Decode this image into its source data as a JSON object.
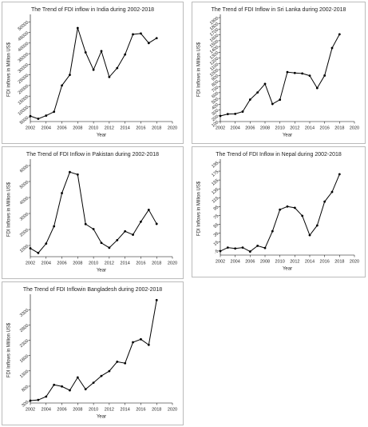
{
  "chart_data": [
    {
      "type": "line",
      "title": "The Trend of FDI inflow in India during 2002-2018",
      "xlabel": "Year",
      "ylabel": "FDI inflows in Million US$",
      "color": "#000000",
      "x": [
        2002,
        2003,
        2004,
        2005,
        2006,
        2007,
        2008,
        2009,
        2010,
        2011,
        2012,
        2013,
        2014,
        2015,
        2016,
        2017,
        2018
      ],
      "values": [
        5600,
        4300,
        5800,
        7600,
        20000,
        25000,
        47100,
        35600,
        27400,
        36200,
        24000,
        28200,
        34600,
        44100,
        44500,
        40000,
        42300
      ],
      "xlim": [
        2002,
        2020
      ],
      "xticks": [
        2002,
        2004,
        2006,
        2008,
        2010,
        2012,
        2014,
        2016,
        2018,
        2020
      ],
      "ylim": [
        3000,
        52000
      ],
      "yticks": [
        5000,
        10000,
        15000,
        20000,
        25000,
        30000,
        35000,
        40000,
        45000,
        50000
      ]
    },
    {
      "type": "line",
      "title": "The Trend of FDI Inflow in Sri Lanka during 2002-2018",
      "xlabel": "Year",
      "ylabel": "FDI Inflows in Million US$",
      "color": "#000000",
      "x": [
        2002,
        2003,
        2004,
        2005,
        2006,
        2007,
        2008,
        2009,
        2010,
        2011,
        2012,
        2013,
        2014,
        2015,
        2016,
        2017,
        2018
      ],
      "values": [
        197,
        229,
        233,
        272,
        480,
        603,
        752,
        404,
        478,
        956,
        941,
        933,
        894,
        680,
        897,
        1373,
        1611
      ],
      "xlim": [
        2002,
        2020
      ],
      "xticks": [
        2002,
        2004,
        2006,
        2008,
        2010,
        2012,
        2014,
        2016,
        2018,
        2020
      ],
      "ylim": [
        100,
        1900
      ],
      "yticks": [
        100,
        200,
        300,
        400,
        500,
        600,
        700,
        800,
        900,
        1000,
        1100,
        1200,
        1300,
        1400,
        1500,
        1600,
        1700,
        1800,
        1900
      ]
    },
    {
      "type": "line",
      "title": "The Trend of FDI Inflow in Pakistan during 2002-2018",
      "xlabel": "Year",
      "ylabel": "FDI Inflows in Million US$",
      "color": "#000000",
      "x": [
        2002,
        2003,
        2004,
        2005,
        2006,
        2007,
        2008,
        2009,
        2010,
        2011,
        2012,
        2013,
        2014,
        2015,
        2016,
        2017,
        2018
      ],
      "values": [
        823,
        534,
        1118,
        2201,
        4273,
        5590,
        5438,
        2338,
        2022,
        1162,
        859,
        1333,
        1887,
        1673,
        2489,
        3229,
        2353
      ],
      "xlim": [
        2002,
        2020
      ],
      "xticks": [
        2002,
        2004,
        2006,
        2008,
        2010,
        2012,
        2014,
        2016,
        2018,
        2020
      ],
      "ylim": [
        300,
        6200
      ],
      "yticks": [
        1000,
        2000,
        3000,
        4000,
        5000,
        6000
      ]
    },
    {
      "type": "line",
      "title": "The Trend of FDI Inflow in Nepal during 2002-2018",
      "xlabel": "Year",
      "ylabel": "FDI Inflows in Million US$",
      "color": "#000000",
      "x": [
        2002,
        2003,
        2004,
        2005,
        2006,
        2007,
        2008,
        2009,
        2010,
        2011,
        2012,
        2013,
        2014,
        2015,
        2016,
        2017,
        2018
      ],
      "values": [
        -6,
        2,
        0,
        2,
        -7,
        6,
        1,
        39,
        88,
        95,
        92,
        74,
        30,
        52,
        106,
        128,
        168
      ],
      "xlim": [
        2002,
        2020
      ],
      "xticks": [
        2002,
        2004,
        2006,
        2008,
        2010,
        2012,
        2014,
        2016,
        2018,
        2020
      ],
      "ylim": [
        -15,
        195
      ],
      "yticks": [
        -5,
        15,
        35,
        55,
        75,
        95,
        115,
        135,
        155,
        175,
        195
      ]
    },
    {
      "type": "line",
      "title": "The Trend of FDI Inflowin Bangladesh during 2002-2018",
      "xlabel": "Year",
      "ylabel": "FDI Inflows in Million US$",
      "color": "#000000",
      "x": [
        2002,
        2003,
        2004,
        2005,
        2006,
        2007,
        2008,
        2009,
        2010,
        2011,
        2012,
        2013,
        2014,
        2015,
        2016,
        2017,
        2018
      ],
      "values": [
        328,
        350,
        460,
        845,
        792,
        666,
        1086,
        700,
        913,
        1136,
        1293,
        1599,
        1551,
        2235,
        2333,
        2152,
        3613
      ],
      "xlim": [
        2002,
        2020
      ],
      "xticks": [
        2002,
        2004,
        2006,
        2008,
        2010,
        2012,
        2014,
        2016,
        2018,
        2020
      ],
      "ylim": [
        250,
        3700
      ],
      "yticks": [
        300,
        800,
        1300,
        1800,
        2300,
        2800,
        3300
      ]
    }
  ]
}
